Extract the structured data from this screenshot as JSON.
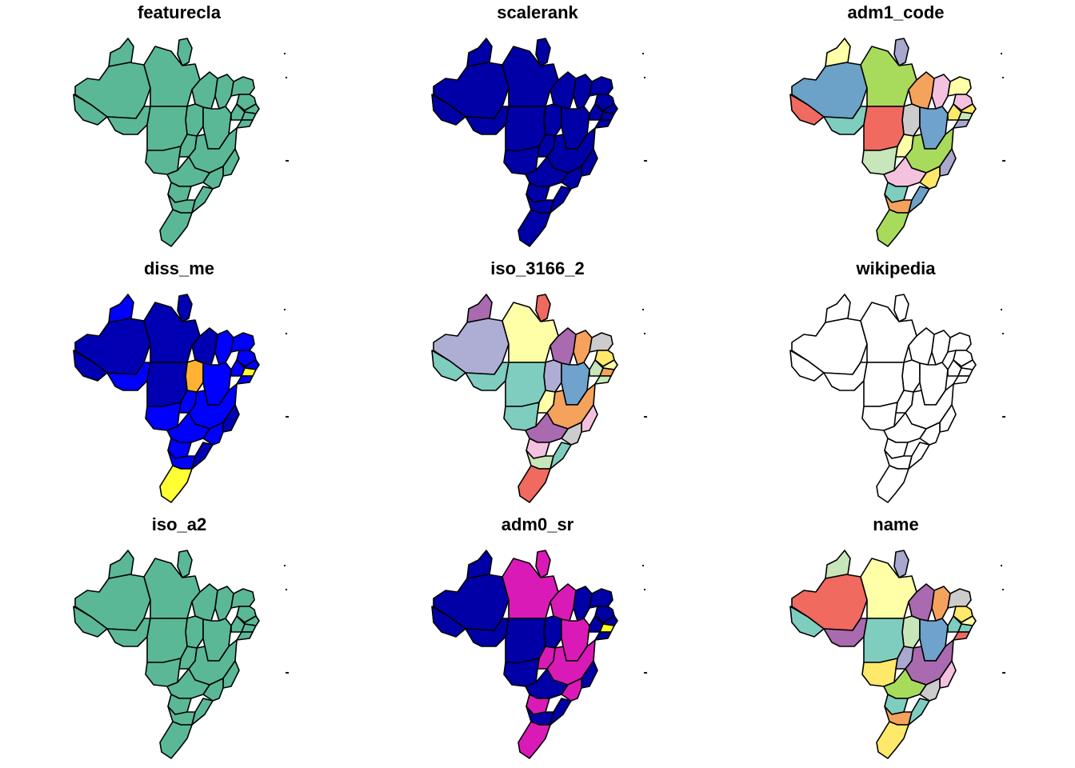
{
  "panels": [
    {
      "title": "featurecla",
      "fills": [
        "#5AB897",
        "#5AB897",
        "#5AB897",
        "#5AB897",
        "#5AB897",
        "#5AB897",
        "#5AB897",
        "#5AB897",
        "#5AB897",
        "#5AB897",
        "#5AB897",
        "#5AB897",
        "#5AB897",
        "#5AB897",
        "#5AB897",
        "#5AB897",
        "#5AB897",
        "#5AB897",
        "#5AB897",
        "#5AB897",
        "#5AB897",
        "#5AB897",
        "#5AB897",
        "#5AB897",
        "#5AB897",
        "#5AB897",
        "#5AB897"
      ]
    },
    {
      "title": "scalerank",
      "fills": [
        "#0000A6",
        "#0000A6",
        "#0000A6",
        "#0000A6",
        "#0000A6",
        "#0000A6",
        "#0000A6",
        "#0000A6",
        "#0000A6",
        "#0000A6",
        "#0000A6",
        "#0000A6",
        "#0000A6",
        "#0000A6",
        "#0000A6",
        "#0000A6",
        "#0000A6",
        "#0000A6",
        "#0000A6",
        "#0000A6",
        "#0000A6",
        "#0000A6",
        "#0000A6",
        "#0000A6",
        "#0000A6",
        "#0000A6",
        "#0000A6"
      ]
    },
    {
      "title": "adm1_code",
      "fills": [
        "#6CA2C8",
        "#FFFFA8",
        "#A9A8CF",
        "#A8DB5C",
        "#F5A25D",
        "#F4C2DE",
        "#F06A60",
        "#7FCDBF",
        "#CCCCCC",
        "#6FA2CC",
        "#FFE96A",
        "#FFFFA8",
        "#F4C2DE",
        "#FFE96A",
        "#C7E6B9",
        "#A9A8CF",
        "#F06A60",
        "#FFFFA8",
        "#A8DB5C",
        "#A9A8CF",
        "#FFE96A",
        "#C7E6B9",
        "#F4C2DE",
        "#7FCDBF",
        "#F5A25D",
        "#A8DB5C",
        "#6CA2C8"
      ]
    },
    {
      "title": "diss_me",
      "fills": [
        "#0000B2",
        "#0000FF",
        "#0000B2",
        "#0000B2",
        "#0000B2",
        "#0000FF",
        "#0000B2",
        "#0000FF",
        "#FFB233",
        "#0000FF",
        "#0000FF",
        "#0000FF",
        "#0000FF",
        "#0000FF",
        "#FFFF33",
        "#0000FF",
        "#0000B2",
        "#0000FF",
        "#0000FF",
        "#0000B2",
        "#0000FF",
        "#0000FF",
        "#0000FF",
        "#0000FF",
        "#0000FF",
        "#FFFF33",
        "#0000B2"
      ]
    },
    {
      "title": "iso_3166_2",
      "fills": [
        "#AEAED4",
        "#A96AAF",
        "#F06A60",
        "#FFFFA8",
        "#A96AAF",
        "#F5A25D",
        "#7FCDBF",
        "#7FCDBF",
        "#AEAED4",
        "#6FA2CC",
        "#C7E6B9",
        "#CCCCCC",
        "#FFE96A",
        "#FFFFA8",
        "#F5A25D",
        "#C7E6B9",
        "#7FCDBF",
        "#FFFFA8",
        "#F5A25D",
        "#F4C2DE",
        "#CCCCCC",
        "#7FCDBF",
        "#A96AAF",
        "#F4C2DE",
        "#C7E6B9",
        "#F06A60",
        "#7FCDBF"
      ]
    },
    {
      "title": "wikipedia",
      "fills": [
        "#FFFFFF",
        "#FFFFFF",
        "#FFFFFF",
        "#FFFFFF",
        "#FFFFFF",
        "#FFFFFF",
        "#FFFFFF",
        "#FFFFFF",
        "#FFFFFF",
        "#FFFFFF",
        "#FFFFFF",
        "#FFFFFF",
        "#FFFFFF",
        "#FFFFFF",
        "#FFFFFF",
        "#FFFFFF",
        "#FFFFFF",
        "#FFFFFF",
        "#FFFFFF",
        "#FFFFFF",
        "#FFFFFF",
        "#FFFFFF",
        "#FFFFFF",
        "#FFFFFF",
        "#FFFFFF",
        "#FFFFFF",
        "#FFFFFF"
      ]
    },
    {
      "title": "iso_a2",
      "fills": [
        "#5AB897",
        "#5AB897",
        "#5AB897",
        "#5AB897",
        "#5AB897",
        "#5AB897",
        "#5AB897",
        "#5AB897",
        "#5AB897",
        "#5AB897",
        "#5AB897",
        "#5AB897",
        "#5AB897",
        "#5AB897",
        "#5AB897",
        "#5AB897",
        "#5AB897",
        "#5AB897",
        "#5AB897",
        "#5AB897",
        "#5AB897",
        "#5AB897",
        "#5AB897",
        "#5AB897",
        "#5AB897",
        "#5AB897",
        "#5AB897"
      ]
    },
    {
      "title": "adm0_sr",
      "fills": [
        "#0000A6",
        "#0000A6",
        "#DA1AB6",
        "#DA1AB6",
        "#DA1AB6",
        "#0000A6",
        "#0000A6",
        "#0000A6",
        "#0000A6",
        "#DA1AB6",
        "#0000A6",
        "#0000A6",
        "#0000A6",
        "#0000A6",
        "#FFFF1A",
        "#0000A6",
        "#0000A6",
        "#DA1AB6",
        "#DA1AB6",
        "#0000A6",
        "#DA1AB6",
        "#0000A6",
        "#0000A6",
        "#DA1AB6",
        "#0000A6",
        "#DA1AB6",
        "#0000A6"
      ]
    },
    {
      "title": "name",
      "fills": [
        "#F06A60",
        "#C7E6B9",
        "#A9A8CF",
        "#FFFFA8",
        "#A96AAF",
        "#F5A25D",
        "#7FCDBF",
        "#A96AAF",
        "#C7E6B9",
        "#6FA2CC",
        "#7FCDBF",
        "#CCCCCC",
        "#FFE96A",
        "#FFFFA8",
        "#7FCDBF",
        "#F06A60",
        "#7FCDBF",
        "#A9A8CF",
        "#A96AAF",
        "#F4C2DE",
        "#CCCCCC",
        "#FFE96A",
        "#A8DB5C",
        "#7FCDBF",
        "#F5A25D",
        "#FFE96A",
        "#7FCDBF"
      ]
    }
  ]
}
